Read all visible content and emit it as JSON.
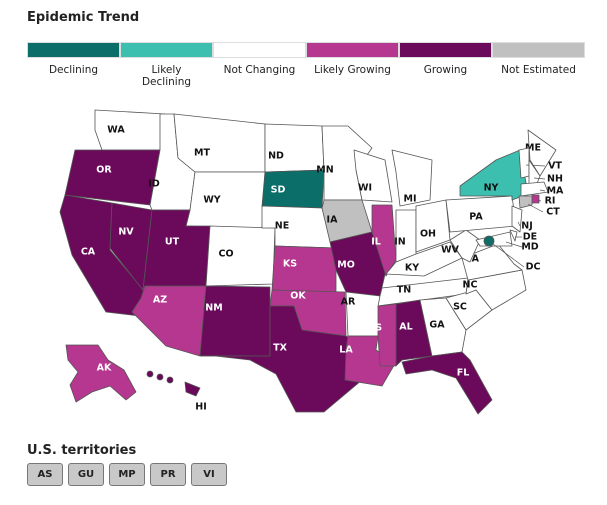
{
  "title": "Epidemic Trend",
  "legend": [
    {
      "label": "Declining",
      "color": "#0b6e69"
    },
    {
      "label": "Likely\nDeclining",
      "color": "#3dbfb0"
    },
    {
      "label": "Not Changing",
      "color": "#ffffff"
    },
    {
      "label": "Likely Growing",
      "color": "#b5378f"
    },
    {
      "label": "Growing",
      "color": "#6b0a5a"
    },
    {
      "label": "Not Estimated",
      "color": "#c0c0c0"
    }
  ],
  "states": [
    {
      "abbr": "WA",
      "trend": "Not Changing"
    },
    {
      "abbr": "OR",
      "trend": "Growing"
    },
    {
      "abbr": "CA",
      "trend": "Growing"
    },
    {
      "abbr": "NV",
      "trend": "Growing"
    },
    {
      "abbr": "ID",
      "trend": "Not Changing"
    },
    {
      "abbr": "MT",
      "trend": "Not Changing"
    },
    {
      "abbr": "WY",
      "trend": "Not Changing"
    },
    {
      "abbr": "UT",
      "trend": "Growing"
    },
    {
      "abbr": "CO",
      "trend": "Not Changing"
    },
    {
      "abbr": "AZ",
      "trend": "Likely Growing"
    },
    {
      "abbr": "NM",
      "trend": "Growing"
    },
    {
      "abbr": "ND",
      "trend": "Not Changing"
    },
    {
      "abbr": "SD",
      "trend": "Declining"
    },
    {
      "abbr": "NE",
      "trend": "Not Changing"
    },
    {
      "abbr": "KS",
      "trend": "Likely Growing"
    },
    {
      "abbr": "OK",
      "trend": "Likely Growing"
    },
    {
      "abbr": "TX",
      "trend": "Growing"
    },
    {
      "abbr": "MN",
      "trend": "Not Changing"
    },
    {
      "abbr": "IA",
      "trend": "Not Estimated"
    },
    {
      "abbr": "MO",
      "trend": "Growing"
    },
    {
      "abbr": "AR",
      "trend": "Not Changing"
    },
    {
      "abbr": "LA",
      "trend": "Likely Growing"
    },
    {
      "abbr": "WI",
      "trend": "Not Changing"
    },
    {
      "abbr": "IL",
      "trend": "Likely Growing"
    },
    {
      "abbr": "MI",
      "trend": "Not Changing"
    },
    {
      "abbr": "IN",
      "trend": "Not Changing"
    },
    {
      "abbr": "OH",
      "trend": "Not Changing"
    },
    {
      "abbr": "KY",
      "trend": "Not Changing"
    },
    {
      "abbr": "TN",
      "trend": "Not Changing"
    },
    {
      "abbr": "MS",
      "trend": "Likely Growing"
    },
    {
      "abbr": "AL",
      "trend": "Growing"
    },
    {
      "abbr": "GA",
      "trend": "Not Changing"
    },
    {
      "abbr": "FL",
      "trend": "Growing"
    },
    {
      "abbr": "SC",
      "trend": "Not Changing"
    },
    {
      "abbr": "NC",
      "trend": "Not Changing"
    },
    {
      "abbr": "VA",
      "trend": "Not Changing"
    },
    {
      "abbr": "WV",
      "trend": "Not Changing"
    },
    {
      "abbr": "PA",
      "trend": "Not Changing"
    },
    {
      "abbr": "NY",
      "trend": "Likely\nDeclining"
    },
    {
      "abbr": "ME",
      "trend": "Not Changing"
    },
    {
      "abbr": "VT",
      "trend": "Not Changing"
    },
    {
      "abbr": "NH",
      "trend": "Not Changing"
    },
    {
      "abbr": "MA",
      "trend": "Not Changing"
    },
    {
      "abbr": "RI",
      "trend": "Likely Growing"
    },
    {
      "abbr": "CT",
      "trend": "Not Estimated"
    },
    {
      "abbr": "NJ",
      "trend": "Not Changing"
    },
    {
      "abbr": "DE",
      "trend": "Not Changing"
    },
    {
      "abbr": "MD",
      "trend": "Not Changing"
    },
    {
      "abbr": "DC",
      "trend": "Declining"
    },
    {
      "abbr": "AK",
      "trend": "Likely Growing"
    },
    {
      "abbr": "HI",
      "trend": "Growing"
    }
  ],
  "territories": {
    "title": "U.S. territories",
    "items": [
      "AS",
      "GU",
      "MP",
      "PR",
      "VI"
    ]
  }
}
